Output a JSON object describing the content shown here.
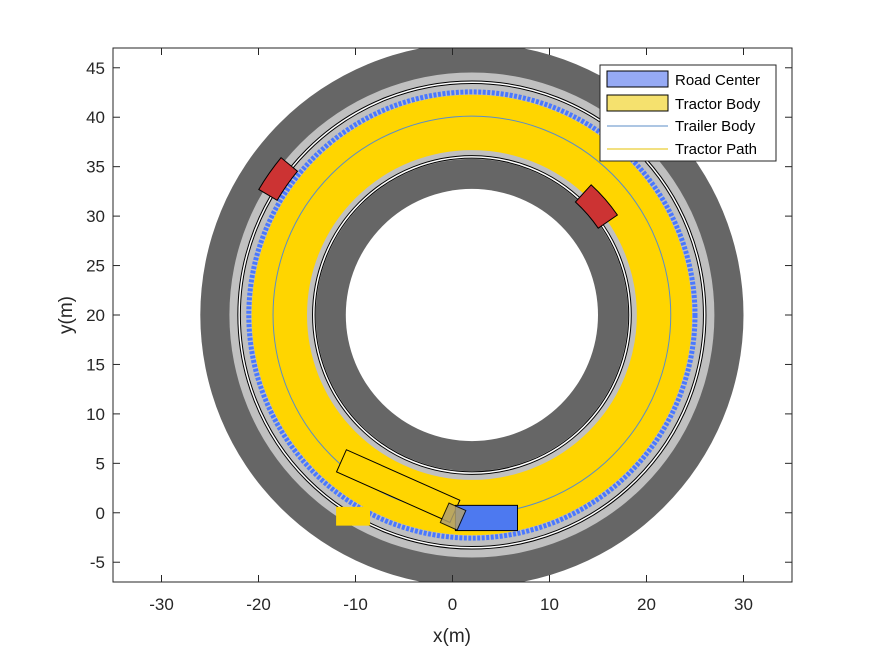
{
  "chart_data": {
    "type": "scatter",
    "title": "",
    "xlabel": "x(m)",
    "ylabel": "y(m)",
    "xlim": [
      -35,
      35
    ],
    "ylim": [
      -7,
      47
    ],
    "xticks": [
      -30,
      -20,
      -10,
      0,
      10,
      20,
      30
    ],
    "yticks": [
      -5,
      0,
      5,
      10,
      15,
      20,
      25,
      30,
      35,
      40,
      45
    ],
    "grid": false,
    "legend_position": "top-right",
    "legend": [
      {
        "label": "Road Center",
        "kind": "patch",
        "color": "#96aaf5"
      },
      {
        "label": "Tractor Body",
        "kind": "patch",
        "color": "#f5e16e"
      },
      {
        "label": "Trailer Body",
        "kind": "line",
        "color": "#5b8dc7"
      },
      {
        "label": "Tractor Path",
        "kind": "line",
        "color": "#e6c200"
      }
    ],
    "road": {
      "center": [
        2,
        20
      ],
      "outer_shoulder_radii": [
        25,
        28
      ],
      "inner_shoulder_radii": [
        13,
        16
      ],
      "lane_radii": [
        16,
        25
      ],
      "boundary_radii": [
        24,
        16.3
      ],
      "centerline_radius": 20.5
    },
    "swept_band": {
      "radii": [
        17,
        22.7
      ],
      "start_point": [
        -12,
        0
      ]
    },
    "trailer_track": {
      "radius": 23
    }
  },
  "colors": {
    "shoulder": "#666666",
    "lane": "#c0c0c0",
    "swept": "#ffd500",
    "trailer_track": "#4a78ff",
    "tractor": "#4d79f0",
    "trailer": "#ffd500",
    "marker": "#cc3333"
  }
}
